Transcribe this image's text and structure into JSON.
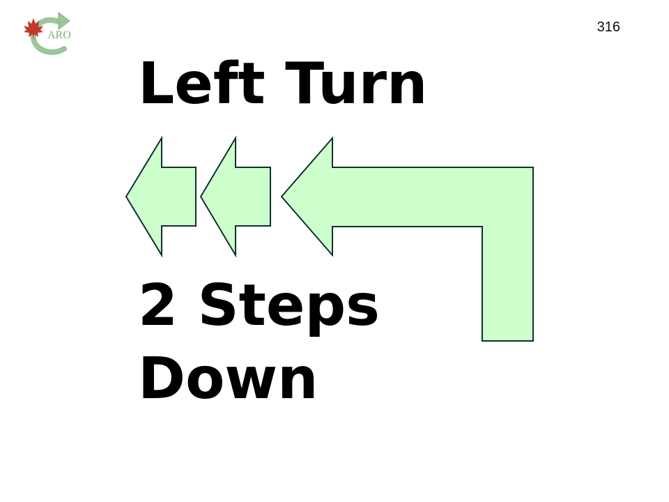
{
  "slide": {
    "page_number": "316",
    "title": "Left Turn",
    "steps_line1": "2 Steps",
    "steps_line2": "Down"
  },
  "logo": {
    "text": "ARO",
    "icon": "maple-leaf-with-circular-arrow"
  },
  "colors": {
    "arrow_fill": "#ccffcc",
    "arrow_stroke": "#0f2f2f",
    "text": "#000000",
    "logo_green": "#7fb07a",
    "logo_red": "#c0392b"
  }
}
